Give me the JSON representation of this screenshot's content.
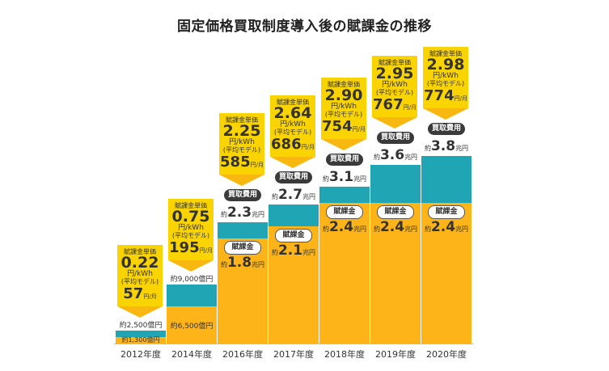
{
  "chart_data": {
    "type": "bar",
    "title": "固定価格買取制度導入後の賦課金の推移",
    "stacked": true,
    "categories": [
      "2012年度",
      "2014年度",
      "2016年度",
      "2017年度",
      "2018年度",
      "2019年度",
      "2020年度"
    ],
    "series": [
      {
        "name": "賦課金",
        "color": "#fdb418",
        "values_oku_yen": [
          1300,
          6500,
          18000,
          21000,
          24000,
          24000,
          24000
        ]
      },
      {
        "name": "買取費用",
        "color": "#1fa5b3",
        "total_values_oku_yen": [
          2500,
          9000,
          23000,
          27000,
          31000,
          36000,
          38000
        ]
      }
    ],
    "columns": [
      {
        "year": "2012年度",
        "total_label": {
          "pre": "約",
          "num": "2,500",
          "suf": "億円"
        },
        "levy_label": {
          "pre": "約",
          "num": "1,300",
          "suf": "億円"
        },
        "rate": "0.22",
        "monthly": "57"
      },
      {
        "year": "2014年度",
        "total_label": {
          "pre": "約",
          "num": "9,000",
          "suf": "億円"
        },
        "levy_label": {
          "pre": "約",
          "num": "6,500",
          "suf": "億円"
        },
        "rate": "0.75",
        "monthly": "195"
      },
      {
        "year": "2016年度",
        "total_label": {
          "pre": "約",
          "num": "2.3",
          "suf": "兆円"
        },
        "levy_label": {
          "pre": "約",
          "num": "1.8",
          "suf": "兆円"
        },
        "rate": "2.25",
        "monthly": "585"
      },
      {
        "year": "2017年度",
        "total_label": {
          "pre": "約",
          "num": "2.7",
          "suf": "兆円"
        },
        "levy_label": {
          "pre": "約",
          "num": "2.1",
          "suf": "兆円"
        },
        "rate": "2.64",
        "monthly": "686"
      },
      {
        "year": "2018年度",
        "total_label": {
          "pre": "約",
          "num": "3.1",
          "suf": "兆円"
        },
        "levy_label": {
          "pre": "約",
          "num": "2.4",
          "suf": "兆円"
        },
        "rate": "2.90",
        "monthly": "754"
      },
      {
        "year": "2019年度",
        "total_label": {
          "pre": "約",
          "num": "3.6",
          "suf": "兆円"
        },
        "levy_label": {
          "pre": "約",
          "num": "2.4",
          "suf": "兆円"
        },
        "rate": "2.95",
        "monthly": "767"
      },
      {
        "year": "2020年度",
        "total_label": {
          "pre": "約",
          "num": "3.8",
          "suf": "兆円"
        },
        "levy_label": {
          "pre": "約",
          "num": "2.4",
          "suf": "兆円"
        },
        "rate": "2.98",
        "monthly": "774"
      }
    ],
    "callout_text": {
      "label": "賦課金単価",
      "unit": "円/kWh",
      "model": "(平均モデル)",
      "monthly_unit": "円/月"
    },
    "pill_purchase": "買取費用",
    "pill_levy": "賦課金"
  }
}
